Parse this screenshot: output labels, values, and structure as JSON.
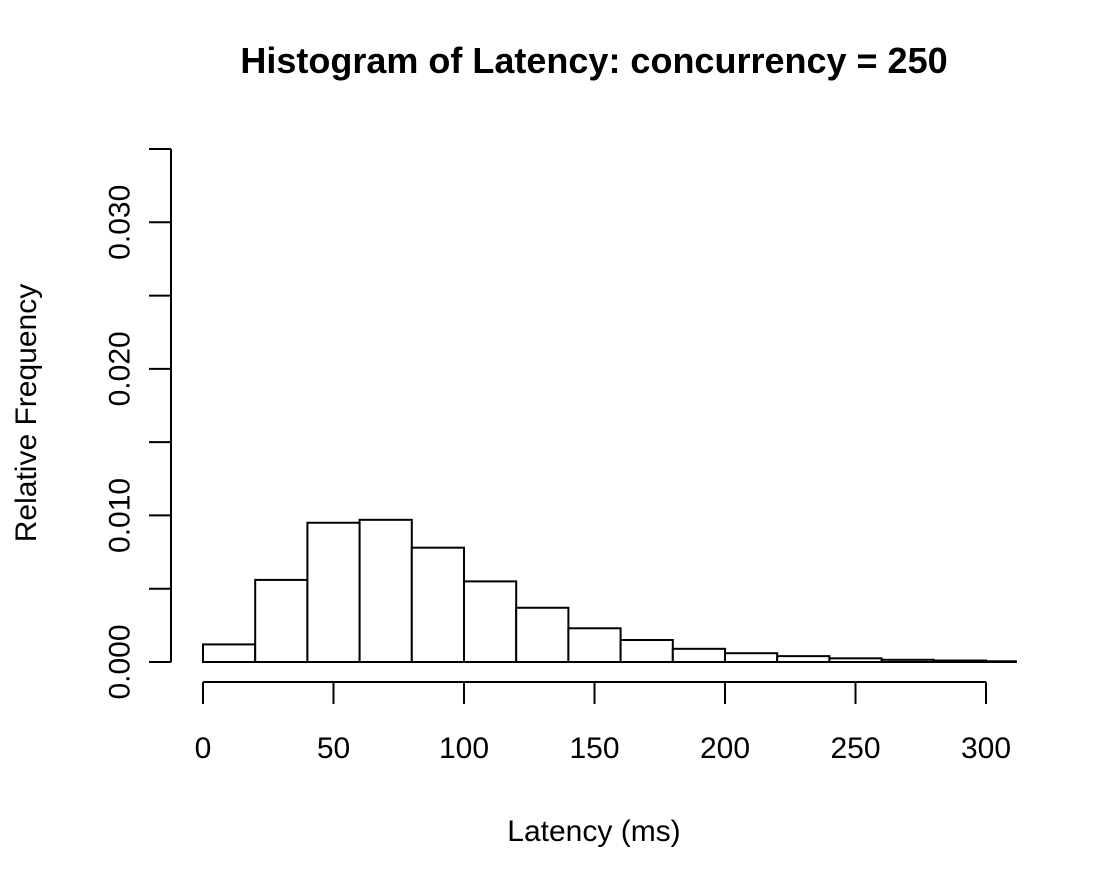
{
  "chart_data": {
    "type": "bar",
    "title": "Histogram of Latency: concurrency = 250",
    "xlabel": "Latency (ms)",
    "ylabel": "Relative Frequency",
    "xlim": [
      0,
      312
    ],
    "ylim": [
      0,
      0.035
    ],
    "x_ticks": [
      0,
      50,
      100,
      150,
      200,
      250,
      300
    ],
    "x_tick_labels": [
      "0",
      "50",
      "100",
      "150",
      "200",
      "250",
      "300"
    ],
    "y_ticks": [
      0,
      0.005,
      0.01,
      0.015,
      0.02,
      0.025,
      0.03,
      0.035
    ],
    "y_tick_labels": [
      "0.000",
      "",
      "0.010",
      "",
      "0.020",
      "",
      "0.030",
      ""
    ],
    "bin_width": 20,
    "bins": [
      {
        "start": 0,
        "end": 20,
        "value": 0.0012
      },
      {
        "start": 20,
        "end": 40,
        "value": 0.0056
      },
      {
        "start": 40,
        "end": 60,
        "value": 0.0095
      },
      {
        "start": 60,
        "end": 80,
        "value": 0.0097
      },
      {
        "start": 80,
        "end": 100,
        "value": 0.0078
      },
      {
        "start": 100,
        "end": 120,
        "value": 0.0055
      },
      {
        "start": 120,
        "end": 140,
        "value": 0.0037
      },
      {
        "start": 140,
        "end": 160,
        "value": 0.0023
      },
      {
        "start": 160,
        "end": 180,
        "value": 0.0015
      },
      {
        "start": 180,
        "end": 200,
        "value": 0.0009
      },
      {
        "start": 200,
        "end": 220,
        "value": 0.0006
      },
      {
        "start": 220,
        "end": 240,
        "value": 0.0004
      },
      {
        "start": 240,
        "end": 260,
        "value": 0.00025
      },
      {
        "start": 260,
        "end": 280,
        "value": 0.00015
      },
      {
        "start": 280,
        "end": 300,
        "value": 0.0001
      },
      {
        "start": 300,
        "end": 320,
        "value": 5e-05
      }
    ],
    "grid": false,
    "legend": "none",
    "colors": {
      "bar_fill": "#ffffff",
      "bar_stroke": "#000000"
    }
  }
}
